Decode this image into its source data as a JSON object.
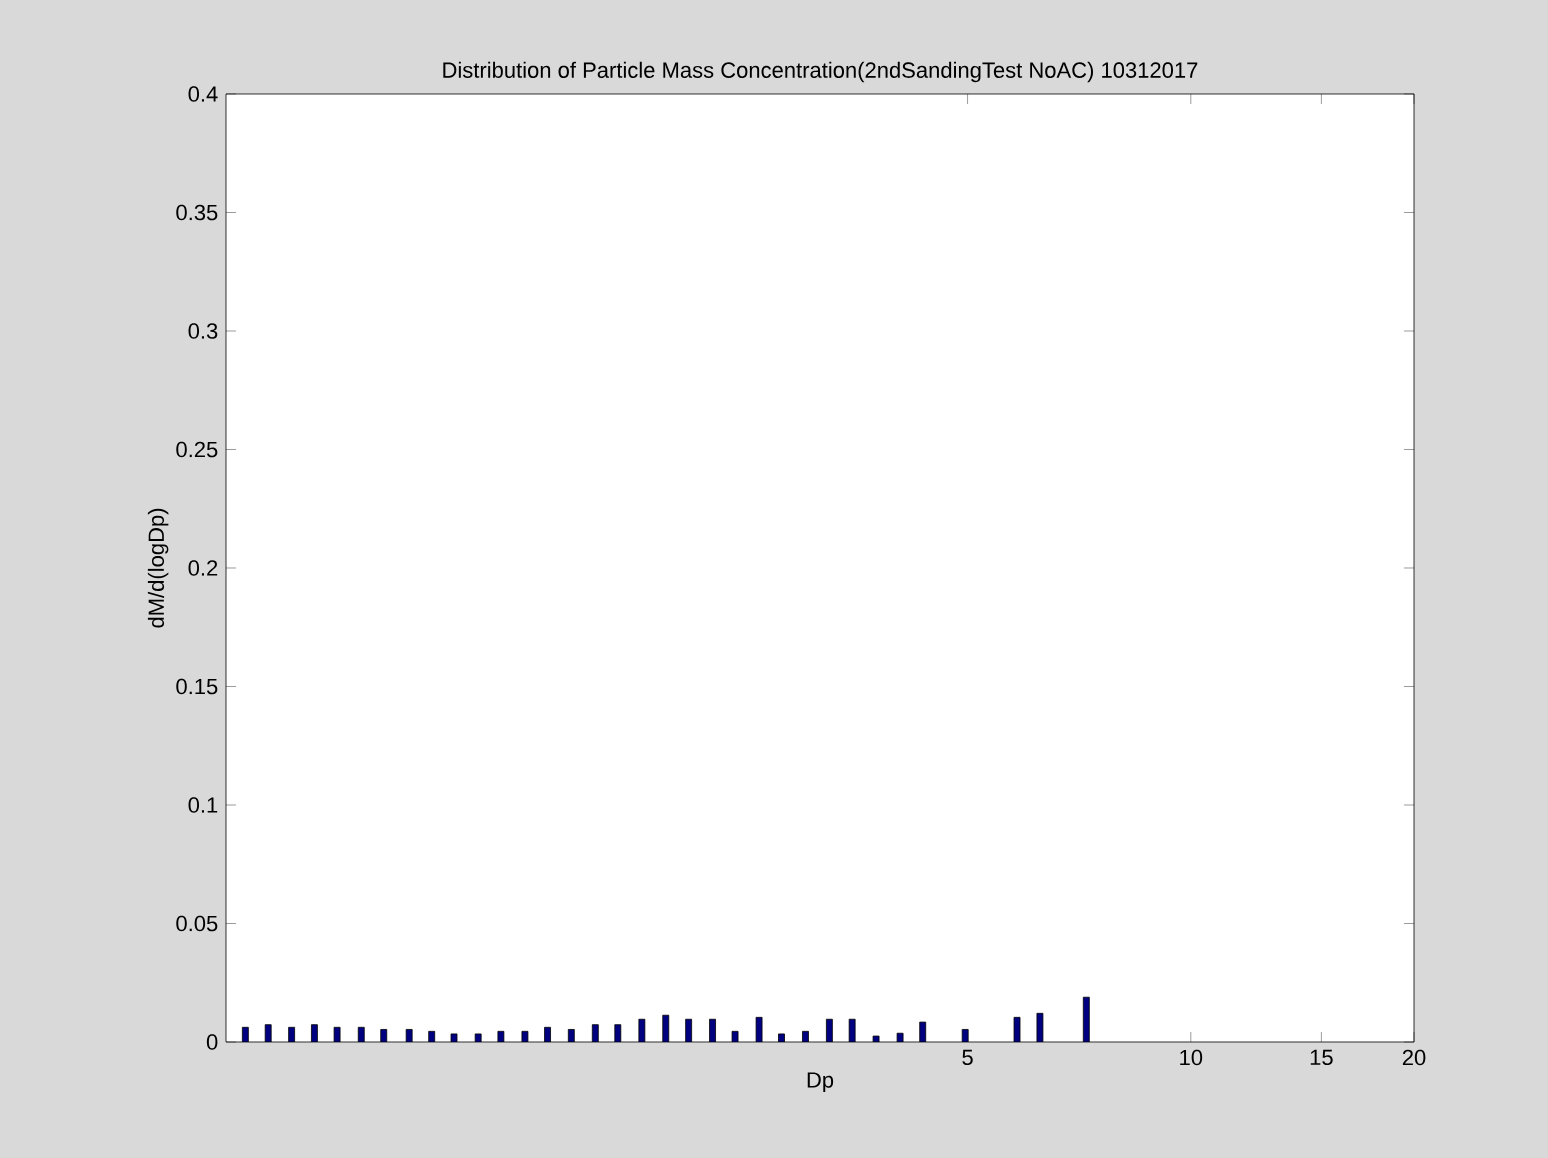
{
  "chart_data": {
    "type": "bar",
    "title": "Distribution of Particle Mass Concentration(2ndSandingTest NoAC) 10312017",
    "xlabel": "Dp",
    "ylabel": "dM/d(logDp)",
    "x": [
      0.531,
      0.57,
      0.613,
      0.658,
      0.706,
      0.761,
      0.816,
      0.883,
      0.947,
      1.015,
      1.094,
      1.174,
      1.265,
      1.357,
      1.461,
      1.574,
      1.688,
      1.819,
      1.959,
      2.103,
      2.265,
      2.429,
      2.617,
      2.806,
      3.023,
      3.256,
      3.494,
      3.764,
      4.055,
      4.35,
      4.963,
      5.83,
      6.26,
      7.23
    ],
    "values": [
      0.0062,
      0.0073,
      0.0062,
      0.0073,
      0.0062,
      0.0062,
      0.0053,
      0.0053,
      0.0045,
      0.0034,
      0.0034,
      0.0045,
      0.0045,
      0.0062,
      0.0053,
      0.0073,
      0.0073,
      0.0096,
      0.0113,
      0.0096,
      0.0096,
      0.0045,
      0.0104,
      0.0034,
      0.0045,
      0.0096,
      0.0096,
      0.0025,
      0.0037,
      0.0084,
      0.0053,
      0.0104,
      0.0121,
      0.0189
    ],
    "color": "#000080",
    "log": "x",
    "xlim": [
      0.5,
      20
    ],
    "xticks": [
      5,
      10,
      15,
      20
    ],
    "ylim": [
      0,
      0.4
    ],
    "yticks": [
      0,
      0.05,
      0.1,
      0.15,
      0.2,
      0.25,
      0.3,
      0.35,
      0.4
    ]
  }
}
